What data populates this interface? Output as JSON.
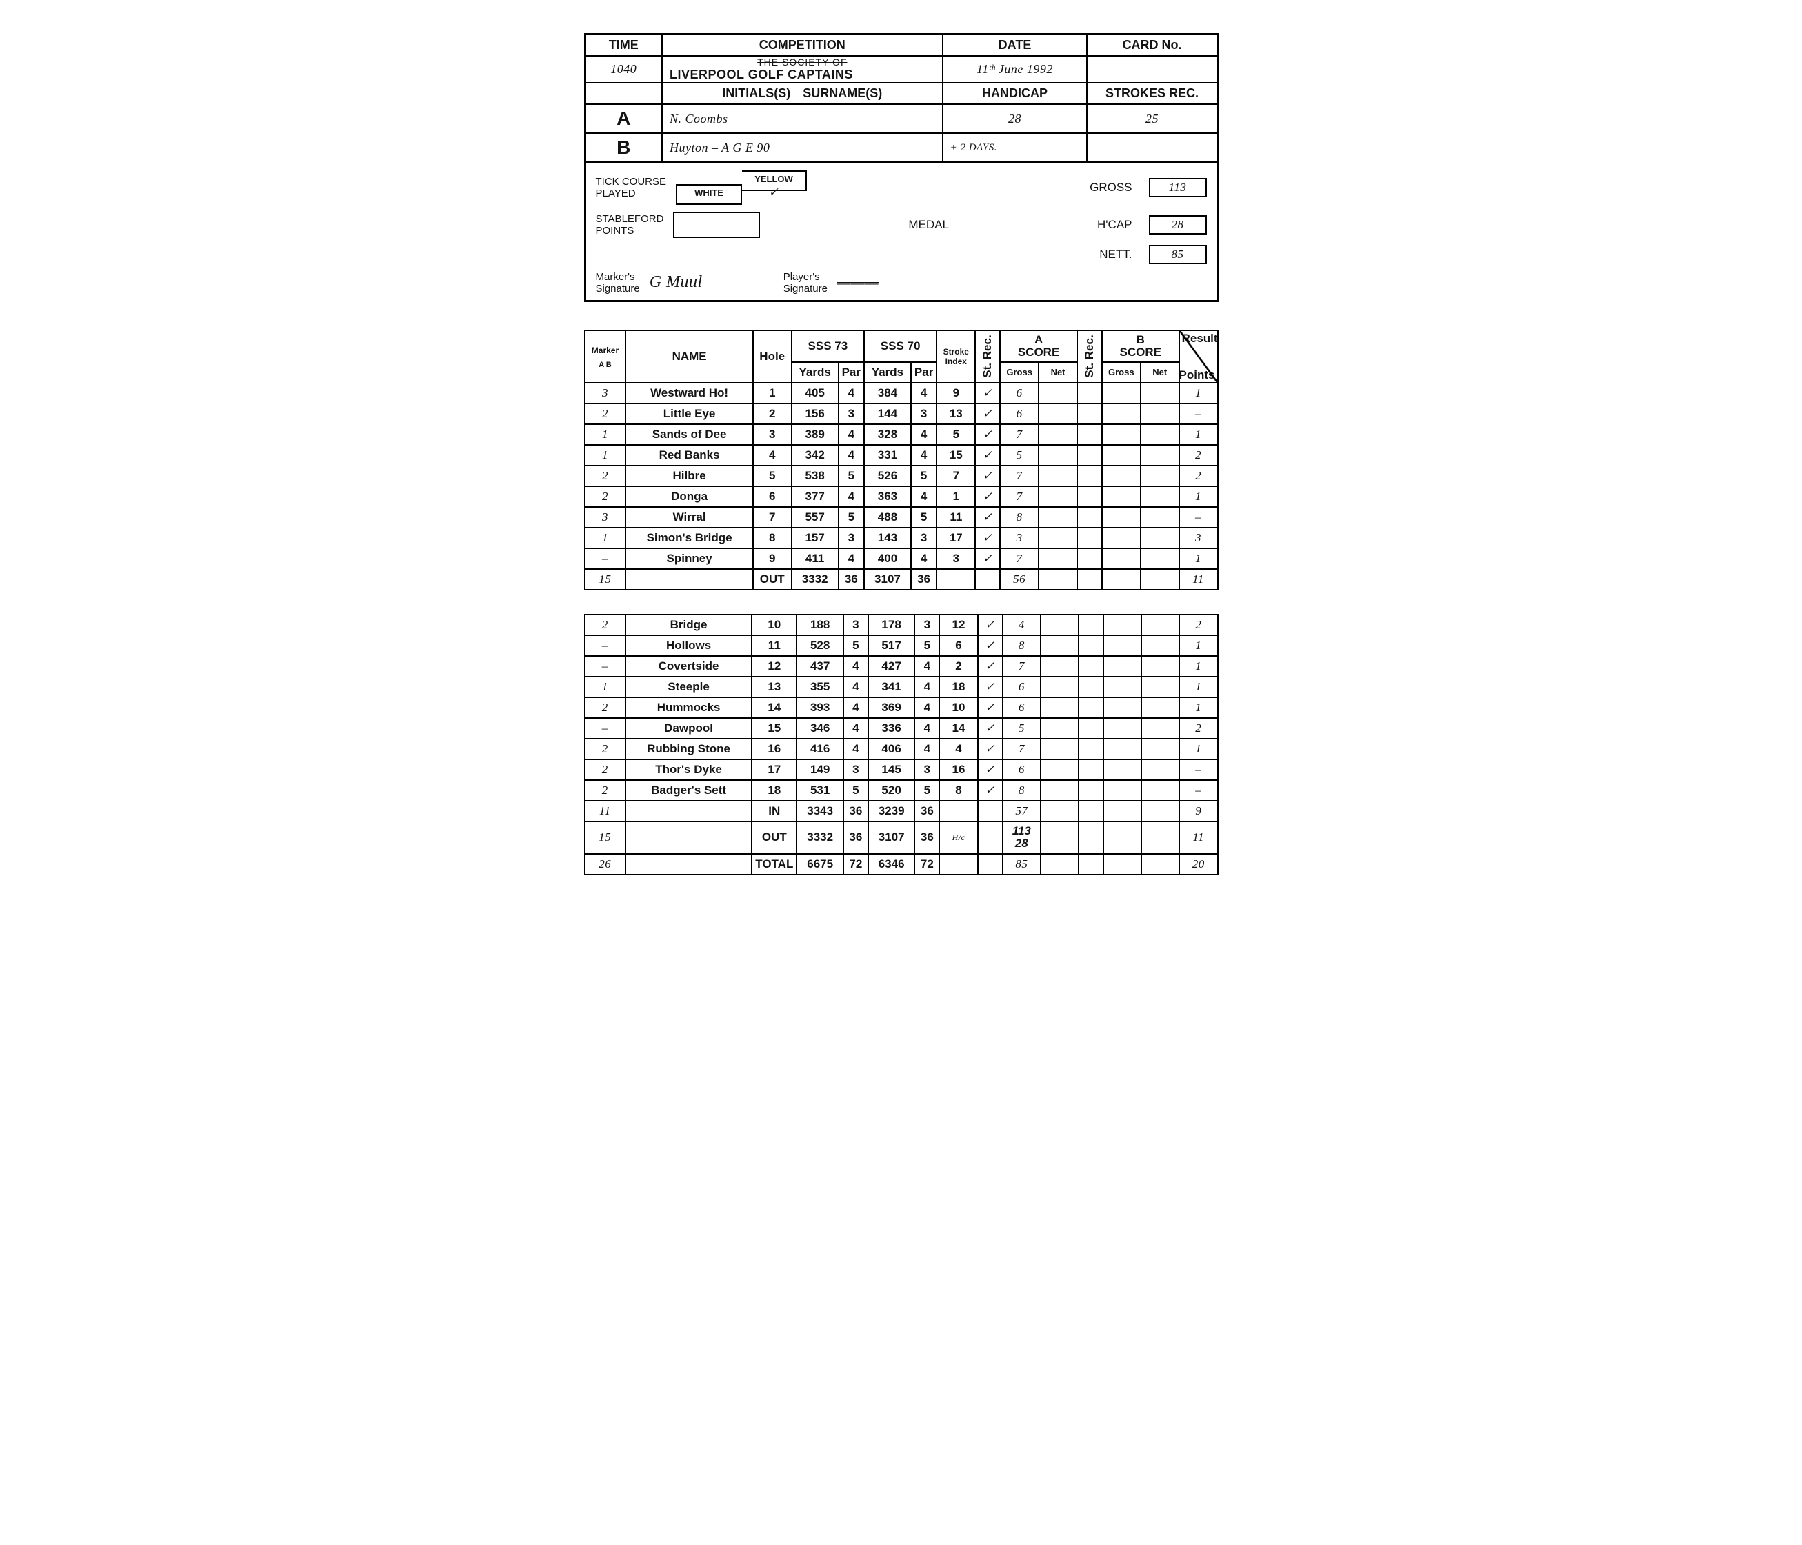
{
  "header": {
    "labels": {
      "time": "TIME",
      "competition": "COMPETITION",
      "date": "DATE",
      "card_no": "CARD No.",
      "initials_surname": "INITIALS(S) SURNAME(S)",
      "handicap": "HANDICAP",
      "strokes_rec": "STROKES REC.",
      "tick_course": "TICK COURSE\nPLAYED",
      "white": "WHITE",
      "yellow": "YELLOW",
      "stableford": "STABLEFORD\nPOINTS",
      "medal": "MEDAL",
      "gross": "GROSS",
      "hcap": "H'CAP",
      "nett": "NETT.",
      "markers_sig": "Marker's\nSignature",
      "players_sig": "Player's\nSignature",
      "society_struck": "THE SOCIETY OF"
    },
    "time": "1040",
    "competition": "LIVERPOOL GOLF CAPTAINS",
    "date": "11ᵗʰ June 1992",
    "card_no": "",
    "player_a": {
      "letter": "A",
      "name": "N. Coombs",
      "handicap": "28",
      "strokes_rec": "25"
    },
    "player_b": {
      "letter": "B",
      "name": "Huyton   – A G E  90",
      "handicap": "+ 2 DAYS.",
      "strokes_rec": ""
    },
    "yellow_tick": "✓",
    "gross": "113",
    "hcap": "28",
    "nett": "85",
    "marker_sig": "G Muul",
    "player_sig": "———"
  },
  "score": {
    "col_labels": {
      "marker": "Marker",
      "marker_sub": "A    B",
      "name": "NAME",
      "hole": "Hole",
      "sss73": "SSS 73",
      "sss70": "SSS 70",
      "yards": "Yards",
      "par": "Par",
      "stroke_index": "Stroke\nIndex",
      "st_rec": "St. Rec.",
      "a_score": "A\nSCORE",
      "b_score": "B\nSCORE",
      "gross": "Gross",
      "net": "Net",
      "result": "Result",
      "points": "Points"
    },
    "front": [
      {
        "m": "3",
        "name": "Westward Ho!",
        "h": "1",
        "y73": "405",
        "p73": "4",
        "y70": "384",
        "p70": "4",
        "si": "9",
        "sr": "✓",
        "ag": "6",
        "an": "",
        "bg": "",
        "bn": "",
        "pts": "1"
      },
      {
        "m": "2",
        "name": "Little Eye",
        "h": "2",
        "y73": "156",
        "p73": "3",
        "y70": "144",
        "p70": "3",
        "si": "13",
        "sr": "✓",
        "ag": "6",
        "an": "",
        "bg": "",
        "bn": "",
        "pts": "–"
      },
      {
        "m": "1",
        "name": "Sands of Dee",
        "h": "3",
        "y73": "389",
        "p73": "4",
        "y70": "328",
        "p70": "4",
        "si": "5",
        "sr": "✓",
        "ag": "7",
        "an": "",
        "bg": "",
        "bn": "",
        "pts": "1"
      },
      {
        "m": "1",
        "name": "Red Banks",
        "h": "4",
        "y73": "342",
        "p73": "4",
        "y70": "331",
        "p70": "4",
        "si": "15",
        "sr": "✓",
        "ag": "5",
        "an": "",
        "bg": "",
        "bn": "",
        "pts": "2"
      },
      {
        "m": "2",
        "name": "Hilbre",
        "h": "5",
        "y73": "538",
        "p73": "5",
        "y70": "526",
        "p70": "5",
        "si": "7",
        "sr": "✓",
        "ag": "7",
        "an": "",
        "bg": "",
        "bn": "",
        "pts": "2"
      },
      {
        "m": "2",
        "name": "Donga",
        "h": "6",
        "y73": "377",
        "p73": "4",
        "y70": "363",
        "p70": "4",
        "si": "1",
        "sr": "✓",
        "ag": "7",
        "an": "",
        "bg": "",
        "bn": "",
        "pts": "1"
      },
      {
        "m": "3",
        "name": "Wirral",
        "h": "7",
        "y73": "557",
        "p73": "5",
        "y70": "488",
        "p70": "5",
        "si": "11",
        "sr": "✓",
        "ag": "8",
        "an": "",
        "bg": "",
        "bn": "",
        "pts": "–"
      },
      {
        "m": "1",
        "name": "Simon's Bridge",
        "h": "8",
        "y73": "157",
        "p73": "3",
        "y70": "143",
        "p70": "3",
        "si": "17",
        "sr": "✓",
        "ag": "3",
        "an": "",
        "bg": "",
        "bn": "",
        "pts": "3"
      },
      {
        "m": "–",
        "name": "Spinney",
        "h": "9",
        "y73": "411",
        "p73": "4",
        "y70": "400",
        "p70": "4",
        "si": "3",
        "sr": "✓",
        "ag": "7",
        "an": "",
        "bg": "",
        "bn": "",
        "pts": "1"
      }
    ],
    "out": {
      "m": "15",
      "label": "OUT",
      "y73": "3332",
      "p73": "36",
      "y70": "3107",
      "p70": "36",
      "ag": "56",
      "pts": "11"
    },
    "back": [
      {
        "m": "2",
        "name": "Bridge",
        "h": "10",
        "y73": "188",
        "p73": "3",
        "y70": "178",
        "p70": "3",
        "si": "12",
        "sr": "✓",
        "ag": "4",
        "an": "",
        "bg": "",
        "bn": "",
        "pts": "2"
      },
      {
        "m": "–",
        "name": "Hollows",
        "h": "11",
        "y73": "528",
        "p73": "5",
        "y70": "517",
        "p70": "5",
        "si": "6",
        "sr": "✓",
        "ag": "8",
        "an": "",
        "bg": "",
        "bn": "",
        "pts": "1"
      },
      {
        "m": "–",
        "name": "Covertside",
        "h": "12",
        "y73": "437",
        "p73": "4",
        "y70": "427",
        "p70": "4",
        "si": "2",
        "sr": "✓",
        "ag": "7",
        "an": "",
        "bg": "",
        "bn": "",
        "pts": "1"
      },
      {
        "m": "1",
        "name": "Steeple",
        "h": "13",
        "y73": "355",
        "p73": "4",
        "y70": "341",
        "p70": "4",
        "si": "18",
        "sr": "✓",
        "ag": "6",
        "an": "",
        "bg": "",
        "bn": "",
        "pts": "1"
      },
      {
        "m": "2",
        "name": "Hummocks",
        "h": "14",
        "y73": "393",
        "p73": "4",
        "y70": "369",
        "p70": "4",
        "si": "10",
        "sr": "✓",
        "ag": "6",
        "an": "",
        "bg": "",
        "bn": "",
        "pts": "1"
      },
      {
        "m": "–",
        "name": "Dawpool",
        "h": "15",
        "y73": "346",
        "p73": "4",
        "y70": "336",
        "p70": "4",
        "si": "14",
        "sr": "✓",
        "ag": "5",
        "an": "",
        "bg": "",
        "bn": "",
        "pts": "2"
      },
      {
        "m": "2",
        "name": "Rubbing Stone",
        "h": "16",
        "y73": "416",
        "p73": "4",
        "y70": "406",
        "p70": "4",
        "si": "4",
        "sr": "✓",
        "ag": "7",
        "an": "",
        "bg": "",
        "bn": "",
        "pts": "1"
      },
      {
        "m": "2",
        "name": "Thor's Dyke",
        "h": "17",
        "y73": "149",
        "p73": "3",
        "y70": "145",
        "p70": "3",
        "si": "16",
        "sr": "✓",
        "ag": "6",
        "an": "",
        "bg": "",
        "bn": "",
        "pts": "–"
      },
      {
        "m": "2",
        "name": "Badger's Sett",
        "h": "18",
        "y73": "531",
        "p73": "5",
        "y70": "520",
        "p70": "5",
        "si": "8",
        "sr": "✓",
        "ag": "8",
        "an": "",
        "bg": "",
        "bn": "",
        "pts": "–"
      }
    ],
    "in": {
      "m": "11",
      "label": "IN",
      "y73": "3343",
      "p73": "36",
      "y70": "3239",
      "p70": "36",
      "ag": "57",
      "pts": "9"
    },
    "out2": {
      "m": "15",
      "label": "OUT",
      "y73": "3332",
      "p73": "36",
      "y70": "3107",
      "p70": "36",
      "si": "H/c",
      "ag_stack": "113\n28",
      "pts": "11"
    },
    "total": {
      "m": "26",
      "label": "TOTAL",
      "y73": "6675",
      "p73": "72",
      "y70": "6346",
      "p70": "72",
      "ag": "85",
      "pts": "20"
    }
  }
}
